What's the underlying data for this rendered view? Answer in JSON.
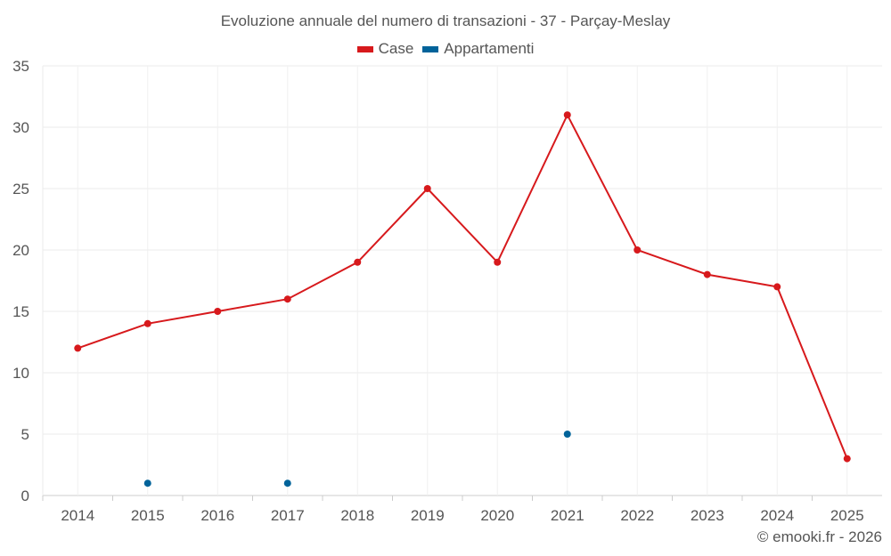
{
  "chart_data": {
    "type": "line",
    "title": "Evoluzione annuale del numero di transazioni - 37 - Parçay-Meslay",
    "categories": [
      "2014",
      "2015",
      "2016",
      "2017",
      "2018",
      "2019",
      "2020",
      "2021",
      "2022",
      "2023",
      "2024",
      "2025"
    ],
    "series": [
      {
        "name": "Case",
        "color": "#d7191c",
        "values": [
          12,
          14,
          15,
          16,
          19,
          25,
          19,
          31,
          20,
          18,
          17,
          3
        ]
      },
      {
        "name": "Appartamenti",
        "color": "#00639a",
        "values": [
          null,
          1,
          null,
          1,
          null,
          null,
          null,
          5,
          null,
          null,
          null,
          null
        ]
      }
    ],
    "yticks": [
      0,
      5,
      10,
      15,
      20,
      25,
      30,
      35
    ],
    "ylim": [
      0,
      35
    ],
    "xlabel": "",
    "ylabel": "",
    "grid": true,
    "legend": "top-center"
  },
  "credit": "© emooki.fr - 2026"
}
